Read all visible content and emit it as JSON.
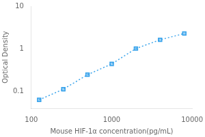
{
  "chart_data": {
    "type": "line",
    "xlabel": "Mouse HIF-1α concentration(pg/mL)",
    "ylabel": "Optical Density",
    "x": [
      125,
      250,
      500,
      1000,
      2000,
      4000,
      8000
    ],
    "values": [
      0.063,
      0.112,
      0.245,
      0.44,
      1.01,
      1.62,
      2.28
    ],
    "xlim": [
      100,
      10000
    ],
    "ylim": [
      0.04,
      10
    ],
    "xticks": [
      100,
      1000,
      10000
    ],
    "yticks": [
      0.1,
      1,
      10
    ],
    "log": true,
    "grid": false,
    "marker": "square",
    "line_style": "dotted"
  }
}
